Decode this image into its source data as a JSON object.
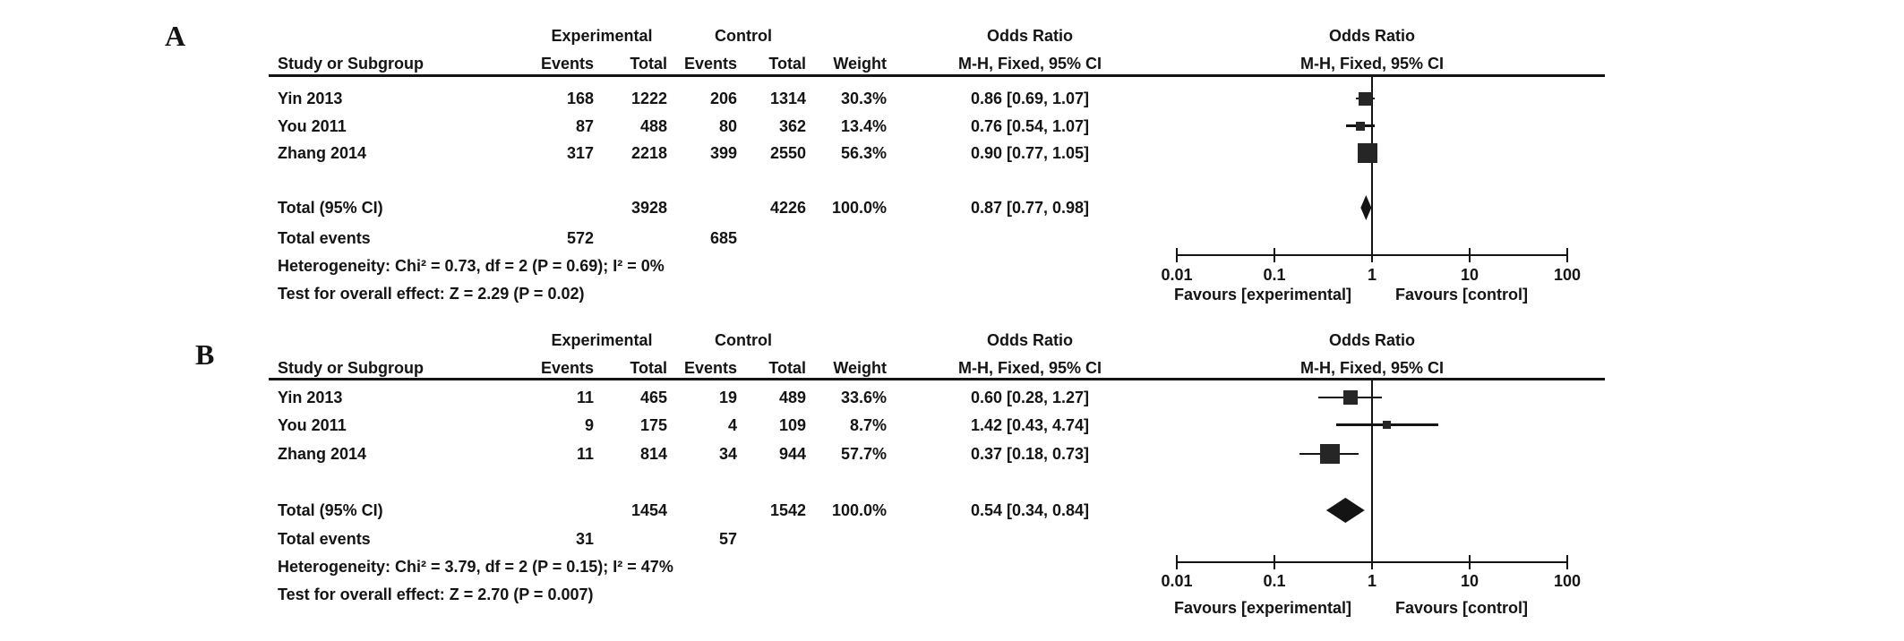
{
  "figure_type": "forest plot (meta-analysis, two panels)",
  "chart_data": [
    {
      "type": "forest",
      "panel_label": "A",
      "effect_measure": "Odds Ratio",
      "model": "M-H, Fixed, 95% CI",
      "headers": {
        "experimental": "Experimental",
        "control": "Control",
        "odds_ratio_left": "Odds Ratio",
        "odds_ratio_right": "Odds Ratio",
        "study": "Study or Subgroup",
        "events_exp": "Events",
        "total_exp": "Total",
        "events_ctl": "Events",
        "total_ctl": "Total",
        "weight": "Weight",
        "mh_left": "M-H, Fixed, 95% CI",
        "mh_right": "M-H, Fixed, 95% CI"
      },
      "studies": [
        {
          "study": "Yin 2013",
          "exp_events": "168",
          "exp_total": "1222",
          "ctl_events": "206",
          "ctl_total": "1314",
          "weight": "30.3%",
          "weight_pct": 30.3,
          "ci_label": "0.86 [0.69, 1.07]",
          "or": 0.86,
          "ci_low": 0.69,
          "ci_high": 1.07
        },
        {
          "study": "You 2011",
          "exp_events": "87",
          "exp_total": "488",
          "ctl_events": "80",
          "ctl_total": "362",
          "weight": "13.4%",
          "weight_pct": 13.4,
          "ci_label": "0.76 [0.54, 1.07]",
          "or": 0.76,
          "ci_low": 0.54,
          "ci_high": 1.07
        },
        {
          "study": "Zhang 2014",
          "exp_events": "317",
          "exp_total": "2218",
          "ctl_events": "399",
          "ctl_total": "2550",
          "weight": "56.3%",
          "weight_pct": 56.3,
          "ci_label": "0.90 [0.77, 1.05]",
          "or": 0.9,
          "ci_low": 0.77,
          "ci_high": 1.05
        }
      ],
      "total": {
        "label": "Total (95% CI)",
        "exp_total": "3928",
        "ctl_total": "4226",
        "weight": "100.0%",
        "ci_label": "0.87 [0.77, 0.98]",
        "or": 0.87,
        "ci_low": 0.77,
        "ci_high": 0.98
      },
      "total_events": {
        "label": "Total events",
        "exp": "572",
        "ctl": "685"
      },
      "heterogeneity": "Heterogeneity: Chi² = 0.73, df = 2 (P = 0.69); I² = 0%",
      "overall_effect": "Test for overall effect: Z = 2.29 (P = 0.02)",
      "axis": {
        "scale": "log10",
        "min": 0.01,
        "max": 100,
        "ticks": [
          0.01,
          0.1,
          1,
          10,
          100
        ],
        "tick_labels": [
          "0.01",
          "0.1",
          "1",
          "10",
          "100"
        ],
        "favours_left": "Favours [experimental]",
        "favours_right": "Favours [control]"
      }
    },
    {
      "type": "forest",
      "panel_label": "B",
      "effect_measure": "Odds Ratio",
      "model": "M-H, Fixed, 95% CI",
      "headers": {
        "experimental": "Experimental",
        "control": "Control",
        "odds_ratio_left": "Odds Ratio",
        "odds_ratio_right": "Odds Ratio",
        "study": "Study or Subgroup",
        "events_exp": "Events",
        "total_exp": "Total",
        "events_ctl": "Events",
        "total_ctl": "Total",
        "weight": "Weight",
        "mh_left": "M-H, Fixed, 95% CI",
        "mh_right": "M-H, Fixed, 95% CI"
      },
      "studies": [
        {
          "study": "Yin 2013",
          "exp_events": "11",
          "exp_total": "465",
          "ctl_events": "19",
          "ctl_total": "489",
          "weight": "33.6%",
          "weight_pct": 33.6,
          "ci_label": "0.60 [0.28, 1.27]",
          "or": 0.6,
          "ci_low": 0.28,
          "ci_high": 1.27
        },
        {
          "study": "You 2011",
          "exp_events": "9",
          "exp_total": "175",
          "ctl_events": "4",
          "ctl_total": "109",
          "weight": "8.7%",
          "weight_pct": 8.7,
          "ci_label": "1.42 [0.43, 4.74]",
          "or": 1.42,
          "ci_low": 0.43,
          "ci_high": 4.74
        },
        {
          "study": "Zhang 2014",
          "exp_events": "11",
          "exp_total": "814",
          "ctl_events": "34",
          "ctl_total": "944",
          "weight": "57.7%",
          "weight_pct": 57.7,
          "ci_label": "0.37 [0.18, 0.73]",
          "or": 0.37,
          "ci_low": 0.18,
          "ci_high": 0.73
        }
      ],
      "total": {
        "label": "Total (95% CI)",
        "exp_total": "1454",
        "ctl_total": "1542",
        "weight": "100.0%",
        "ci_label": "0.54 [0.34, 0.84]",
        "or": 0.54,
        "ci_low": 0.34,
        "ci_high": 0.84
      },
      "total_events": {
        "label": "Total events",
        "exp": "31",
        "ctl": "57"
      },
      "heterogeneity": "Heterogeneity: Chi² = 3.79, df = 2 (P = 0.15); I² = 47%",
      "overall_effect": "Test for overall effect: Z = 2.70 (P = 0.007)",
      "axis": {
        "scale": "log10",
        "min": 0.01,
        "max": 100,
        "ticks": [
          0.01,
          0.1,
          1,
          10,
          100
        ],
        "tick_labels": [
          "0.01",
          "0.1",
          "1",
          "10",
          "100"
        ],
        "favours_left": "Favours [experimental]",
        "favours_right": "Favours [control]"
      }
    }
  ],
  "colors": {
    "text": "#141414",
    "marker": "#262626",
    "background": "#ffffff"
  }
}
